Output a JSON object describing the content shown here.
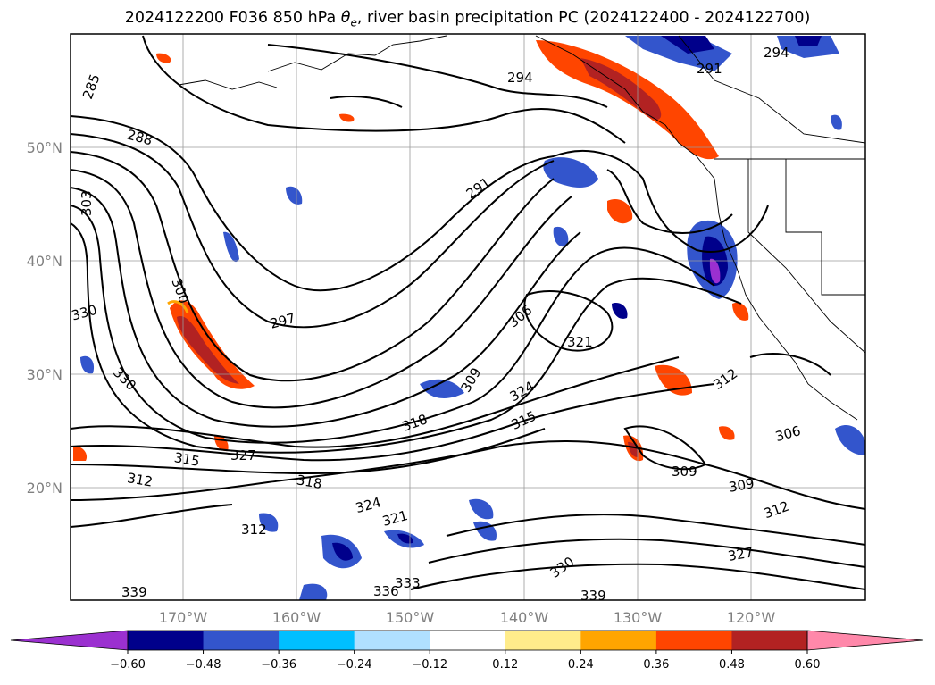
{
  "title": {
    "main": "2024122200 F036 850 hPa ",
    "theta_symbol": "θ",
    "theta_sub": "e",
    "rest": ", river basin precipitation PC (2024122400 - 2024122700)"
  },
  "map": {
    "lat_labels": [
      "50°N",
      "40°N",
      "30°N",
      "20°N"
    ],
    "lon_labels": [
      "170°W",
      "160°W",
      "150°W",
      "140°W",
      "130°W",
      "120°W"
    ],
    "contour_labels": [
      "285",
      "288",
      "291",
      "294",
      "294",
      "297",
      "300",
      "303",
      "306",
      "306",
      "309",
      "309",
      "309",
      "312",
      "312",
      "312",
      "315",
      "315",
      "318",
      "321",
      "321",
      "324",
      "324",
      "327",
      "327",
      "330",
      "330",
      "330",
      "333",
      "336",
      "339",
      "339",
      "318",
      "312",
      "291"
    ]
  },
  "colorbar": {
    "ticks": [
      "−0.60",
      "−0.48",
      "−0.36",
      "−0.24",
      "−0.12",
      "0.12",
      "0.24",
      "0.36",
      "0.48",
      "0.60"
    ],
    "colors": [
      "#9b30d0",
      "#00008b",
      "#3355cc",
      "#00bfff",
      "#b0e0ff",
      "#ffffff",
      "#ffec8b",
      "#ffa500",
      "#ff4500",
      "#b22222",
      "#ff88aa"
    ]
  }
}
